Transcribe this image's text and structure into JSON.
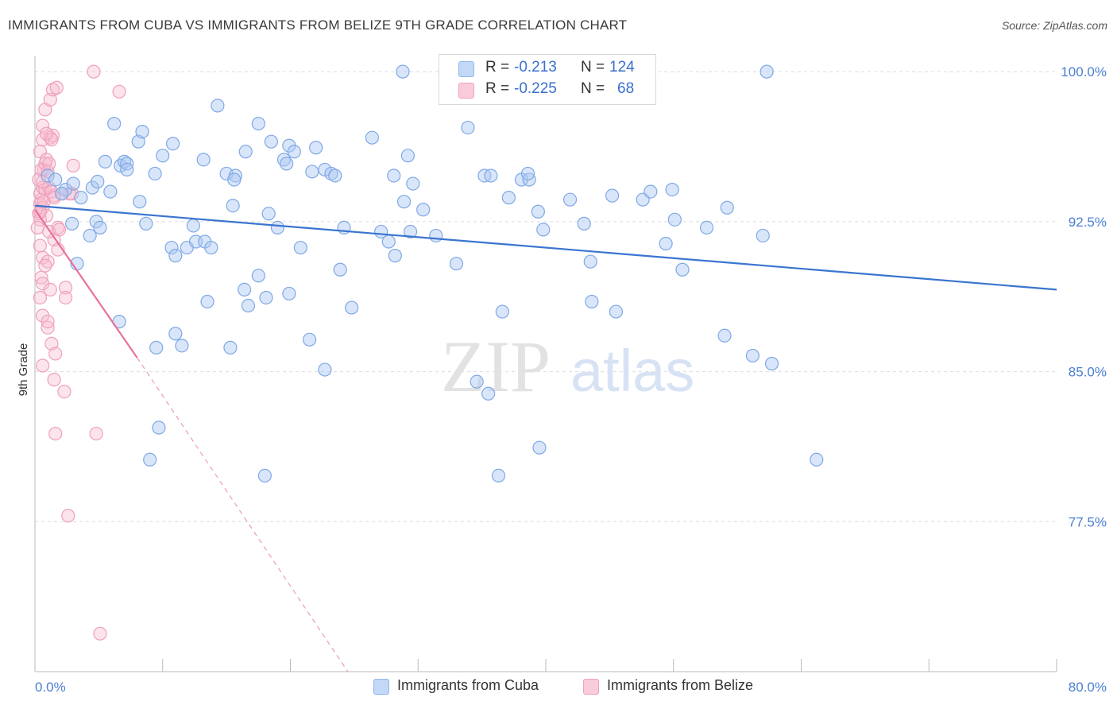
{
  "header": {
    "title": "IMMIGRANTS FROM CUBA VS IMMIGRANTS FROM BELIZE 9TH GRADE CORRELATION CHART",
    "source": "Source: ZipAtlas.com"
  },
  "watermark": {
    "zip": "ZIP",
    "atlas": "atlas"
  },
  "legend": {
    "rows": [
      {
        "r_label": "R =",
        "r_value": "-0.213",
        "n_label": "N =",
        "n_value": "124",
        "color": "#8fb6ec",
        "fill": "#c2d8f6"
      },
      {
        "r_label": "R =",
        "r_value": "-0.225",
        "n_label": "N =",
        "n_value": "68",
        "color": "#f0a2bd",
        "fill": "#f9cbdb"
      }
    ]
  },
  "bottom_legend": {
    "items": [
      {
        "label": "Immigrants from Cuba",
        "fill": "#c2d8f6",
        "stroke": "#8fb6ec"
      },
      {
        "label": "Immigrants from Belize",
        "fill": "#f9cbdb",
        "stroke": "#f0a2bd"
      }
    ]
  },
  "chart_data": {
    "type": "scatter",
    "title": "IMMIGRANTS FROM CUBA VS IMMIGRANTS FROM BELIZE 9TH GRADE CORRELATION CHART",
    "xlabel": "",
    "ylabel": "9th Grade",
    "x_tick_labels": [
      "0.0%",
      "80.0%"
    ],
    "y_tick_labels": [
      "100.0%",
      "92.5%",
      "85.0%",
      "77.5%"
    ],
    "y_ticks": [
      100.0,
      92.5,
      85.0,
      77.5
    ],
    "xlim": [
      0,
      80
    ],
    "ylim": [
      70.0,
      100.8
    ],
    "grid": true,
    "colors": {
      "cuba": "#3a75d0",
      "belize": "#e8719b"
    },
    "series": [
      {
        "name": "Immigrants from Cuba",
        "trend": {
          "x": [
            0,
            80
          ],
          "y": [
            93.3,
            89.1
          ],
          "style": "solid"
        },
        "points": [
          [
            1.0,
            94.8
          ],
          [
            1.6,
            94.6
          ],
          [
            2.4,
            94.1
          ],
          [
            2.1,
            93.9
          ],
          [
            3.0,
            94.4
          ],
          [
            3.6,
            93.7
          ],
          [
            4.5,
            94.2
          ],
          [
            2.9,
            92.4
          ],
          [
            4.8,
            92.5
          ],
          [
            4.3,
            91.8
          ],
          [
            5.1,
            92.2
          ],
          [
            3.3,
            90.4
          ],
          [
            4.9,
            94.5
          ],
          [
            5.5,
            95.5
          ],
          [
            5.9,
            94.0
          ],
          [
            6.2,
            97.4
          ],
          [
            6.7,
            95.3
          ],
          [
            7.0,
            95.5
          ],
          [
            7.2,
            95.4
          ],
          [
            7.2,
            95.1
          ],
          [
            8.1,
            96.5
          ],
          [
            8.2,
            93.5
          ],
          [
            8.4,
            97.0
          ],
          [
            8.7,
            92.4
          ],
          [
            9.4,
            94.9
          ],
          [
            10.0,
            95.8
          ],
          [
            10.8,
            96.4
          ],
          [
            10.7,
            91.2
          ],
          [
            11.0,
            90.8
          ],
          [
            11.9,
            91.2
          ],
          [
            12.4,
            92.3
          ],
          [
            12.6,
            91.5
          ],
          [
            13.2,
            95.6
          ],
          [
            13.3,
            91.5
          ],
          [
            13.8,
            91.2
          ],
          [
            14.3,
            98.3
          ],
          [
            15.0,
            94.9
          ],
          [
            15.7,
            94.8
          ],
          [
            15.6,
            94.6
          ],
          [
            15.5,
            93.3
          ],
          [
            16.5,
            96.0
          ],
          [
            17.5,
            97.4
          ],
          [
            18.3,
            92.9
          ],
          [
            18.5,
            96.5
          ],
          [
            19.5,
            95.6
          ],
          [
            19.9,
            96.3
          ],
          [
            20.3,
            96.0
          ],
          [
            19.7,
            95.4
          ],
          [
            19.0,
            92.2
          ],
          [
            20.8,
            91.2
          ],
          [
            21.7,
            95.0
          ],
          [
            22.0,
            96.2
          ],
          [
            22.7,
            95.1
          ],
          [
            23.2,
            94.9
          ],
          [
            23.5,
            94.8
          ],
          [
            23.9,
            90.1
          ],
          [
            24.2,
            92.2
          ],
          [
            24.8,
            88.2
          ],
          [
            26.4,
            96.7
          ],
          [
            28.1,
            94.8
          ],
          [
            28.9,
            93.5
          ],
          [
            29.2,
            95.8
          ],
          [
            29.4,
            92.0
          ],
          [
            30.4,
            93.1
          ],
          [
            29.6,
            94.4
          ],
          [
            31.4,
            91.8
          ],
          [
            27.7,
            91.5
          ],
          [
            27.1,
            92.0
          ],
          [
            28.2,
            90.8
          ],
          [
            33.9,
            97.2
          ],
          [
            33.0,
            90.4
          ],
          [
            35.2,
            94.8
          ],
          [
            35.7,
            94.8
          ],
          [
            37.1,
            93.7
          ],
          [
            38.1,
            94.6
          ],
          [
            38.7,
            94.6
          ],
          [
            38.6,
            94.9
          ],
          [
            39.4,
            93.0
          ],
          [
            39.8,
            92.1
          ],
          [
            41.9,
            93.6
          ],
          [
            43.0,
            92.4
          ],
          [
            43.5,
            90.5
          ],
          [
            45.2,
            93.8
          ],
          [
            47.6,
            93.6
          ],
          [
            48.2,
            94.0
          ],
          [
            49.9,
            94.1
          ],
          [
            50.1,
            92.6
          ],
          [
            49.4,
            91.4
          ],
          [
            50.7,
            90.1
          ],
          [
            52.6,
            92.2
          ],
          [
            54.2,
            93.2
          ],
          [
            57.0,
            91.8
          ],
          [
            6.6,
            87.5
          ],
          [
            9.5,
            86.2
          ],
          [
            11.0,
            86.9
          ],
          [
            11.5,
            86.3
          ],
          [
            13.5,
            88.5
          ],
          [
            15.3,
            86.2
          ],
          [
            16.4,
            89.1
          ],
          [
            16.7,
            88.3
          ],
          [
            17.5,
            89.8
          ],
          [
            18.1,
            88.7
          ],
          [
            19.9,
            88.9
          ],
          [
            21.5,
            86.6
          ],
          [
            22.7,
            85.1
          ],
          [
            36.6,
            88.0
          ],
          [
            43.6,
            88.5
          ],
          [
            45.5,
            88.0
          ],
          [
            56.2,
            85.8
          ],
          [
            57.7,
            85.4
          ],
          [
            54.0,
            86.8
          ],
          [
            9.7,
            82.2
          ],
          [
            9.0,
            80.6
          ],
          [
            18.0,
            79.8
          ],
          [
            34.6,
            84.5
          ],
          [
            35.5,
            83.9
          ],
          [
            36.3,
            79.8
          ],
          [
            39.5,
            81.2
          ],
          [
            61.2,
            80.6
          ],
          [
            28.8,
            100.0
          ],
          [
            57.3,
            100.0
          ]
        ]
      },
      {
        "name": "Immigrants from Belize",
        "trend": {
          "x": [
            0,
            8.0
          ],
          "y": [
            93.1,
            85.7
          ],
          "style": "solid",
          "ext_x": [
            8.0,
            24.5
          ],
          "ext_y": [
            85.7,
            70.0
          ]
        },
        "points": [
          [
            0.3,
            94.6
          ],
          [
            0.4,
            93.9
          ],
          [
            0.6,
            94.2
          ],
          [
            0.5,
            93.6
          ],
          [
            0.4,
            93.4
          ],
          [
            0.8,
            94.1
          ],
          [
            0.6,
            93.2
          ],
          [
            0.3,
            92.9
          ],
          [
            0.4,
            92.6
          ],
          [
            0.2,
            92.2
          ],
          [
            0.7,
            95.1
          ],
          [
            0.5,
            95.1
          ],
          [
            0.8,
            95.4
          ],
          [
            0.4,
            96.0
          ],
          [
            0.9,
            95.6
          ],
          [
            0.6,
            96.6
          ],
          [
            1.2,
            96.7
          ],
          [
            1.4,
            96.8
          ],
          [
            1.3,
            96.6
          ],
          [
            0.6,
            97.3
          ],
          [
            0.8,
            98.1
          ],
          [
            1.2,
            98.6
          ],
          [
            1.4,
            99.1
          ],
          [
            1.7,
            99.2
          ],
          [
            4.6,
            100.0
          ],
          [
            6.6,
            99.0
          ],
          [
            1.0,
            95.0
          ],
          [
            1.1,
            94.2
          ],
          [
            1.5,
            93.8
          ],
          [
            1.3,
            94.0
          ],
          [
            2.1,
            93.9
          ],
          [
            2.9,
            93.9
          ],
          [
            3.0,
            95.3
          ],
          [
            1.8,
            92.2
          ],
          [
            1.5,
            91.6
          ],
          [
            1.1,
            92.0
          ],
          [
            0.4,
            91.3
          ],
          [
            0.6,
            90.7
          ],
          [
            1.0,
            90.5
          ],
          [
            0.8,
            90.3
          ],
          [
            1.8,
            91.1
          ],
          [
            0.5,
            89.7
          ],
          [
            0.6,
            89.4
          ],
          [
            1.2,
            89.1
          ],
          [
            2.4,
            89.2
          ],
          [
            2.4,
            88.7
          ],
          [
            0.4,
            88.7
          ],
          [
            0.6,
            87.8
          ],
          [
            1.0,
            87.2
          ],
          [
            1.0,
            87.5
          ],
          [
            1.3,
            86.4
          ],
          [
            1.6,
            85.9
          ],
          [
            0.6,
            85.3
          ],
          [
            1.5,
            84.6
          ],
          [
            2.3,
            84.0
          ],
          [
            1.6,
            81.9
          ],
          [
            4.8,
            81.9
          ],
          [
            2.6,
            77.8
          ],
          [
            5.1,
            71.9
          ],
          [
            1.1,
            95.4
          ],
          [
            0.7,
            93.5
          ],
          [
            1.9,
            92.1
          ],
          [
            0.9,
            92.8
          ],
          [
            0.4,
            93.0
          ],
          [
            1.5,
            93.7
          ],
          [
            0.6,
            94.5
          ],
          [
            2.7,
            93.9
          ],
          [
            0.9,
            96.9
          ]
        ]
      }
    ]
  }
}
